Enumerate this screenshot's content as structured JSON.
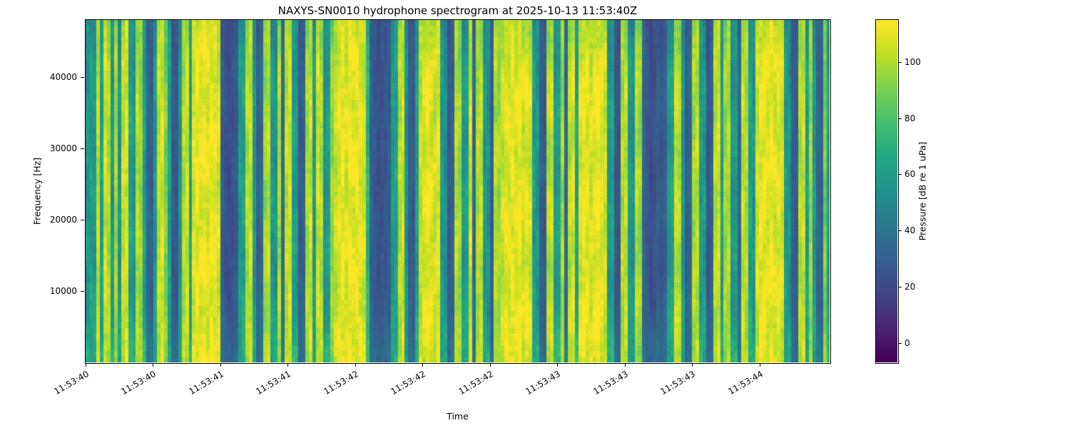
{
  "chart_data": {
    "type": "heatmap",
    "title": "NAXYS-SN0010 hydrophone spectrogram at 2025-10-13 11:53:40Z",
    "xlabel": "Time",
    "ylabel": "Frequency [Hz]",
    "x_ticklabels": [
      "11:53:40",
      "11:53:40",
      "11:53:41",
      "11:53:41",
      "11:53:42",
      "11:53:42",
      "11:53:42",
      "11:53:43",
      "11:53:43",
      "11:53:43",
      "11:53:44"
    ],
    "y_ticks": [
      10000,
      20000,
      30000,
      40000
    ],
    "ylim": [
      0,
      48000
    ],
    "grid": false,
    "colorbar": {
      "label": "Pressure [dB re 1 uPa]",
      "ticks": [
        0,
        20,
        40,
        60,
        80,
        100
      ],
      "clim": [
        -7,
        115
      ],
      "colormap": "viridis",
      "colormap_stops": [
        "#440154",
        "#482475",
        "#414487",
        "#355f8d",
        "#2a788e",
        "#21918c",
        "#22a884",
        "#44bf70",
        "#7ad151",
        "#bddf26",
        "#fde725"
      ]
    },
    "column_levels_db": [
      55,
      60,
      58,
      102,
      60,
      106,
      100,
      58,
      97,
      55,
      104,
      108,
      62,
      57,
      100,
      95,
      60,
      32,
      30,
      58,
      103,
      107,
      90,
      60,
      28,
      26,
      55,
      100,
      105,
      62,
      108,
      112,
      110,
      113,
      109,
      112,
      111,
      107,
      30,
      24,
      22,
      25,
      28,
      58,
      62,
      100,
      104,
      57,
      30,
      33,
      96,
      101,
      58,
      55,
      99,
      35,
      102,
      106,
      60,
      57,
      28,
      31,
      98,
      103,
      58,
      105,
      100,
      55,
      60,
      95,
      104,
      109,
      112,
      108,
      113,
      110,
      112,
      109,
      106,
      70,
      32,
      26,
      23,
      25,
      27,
      30,
      58,
      62,
      101,
      106,
      55,
      30,
      28,
      60,
      103,
      108,
      112,
      109,
      105,
      110,
      58,
      54,
      27,
      31,
      100,
      96,
      57,
      61,
      104,
      33,
      99,
      103,
      58,
      55,
      29,
      101,
      97,
      105,
      110,
      108,
      112,
      109,
      113,
      107,
      111,
      106,
      60,
      56,
      30,
      26,
      100,
      104,
      58,
      61,
      97,
      32,
      102,
      107,
      62,
      108,
      112,
      110,
      106,
      111,
      113,
      109,
      105,
      57,
      60,
      28,
      24,
      99,
      103,
      58,
      54,
      100,
      96,
      33,
      27,
      22,
      25,
      29,
      26,
      31,
      58,
      62,
      104,
      100,
      56,
      29,
      33,
      98,
      102,
      60,
      57,
      26,
      30,
      101,
      105,
      58,
      96,
      100,
      55,
      59,
      32,
      103,
      99,
      61,
      57,
      106,
      111,
      113,
      109,
      112,
      108,
      110,
      107,
      58,
      55,
      30,
      27,
      100,
      104,
      60,
      96,
      57,
      34,
      30,
      88,
      60
    ]
  }
}
